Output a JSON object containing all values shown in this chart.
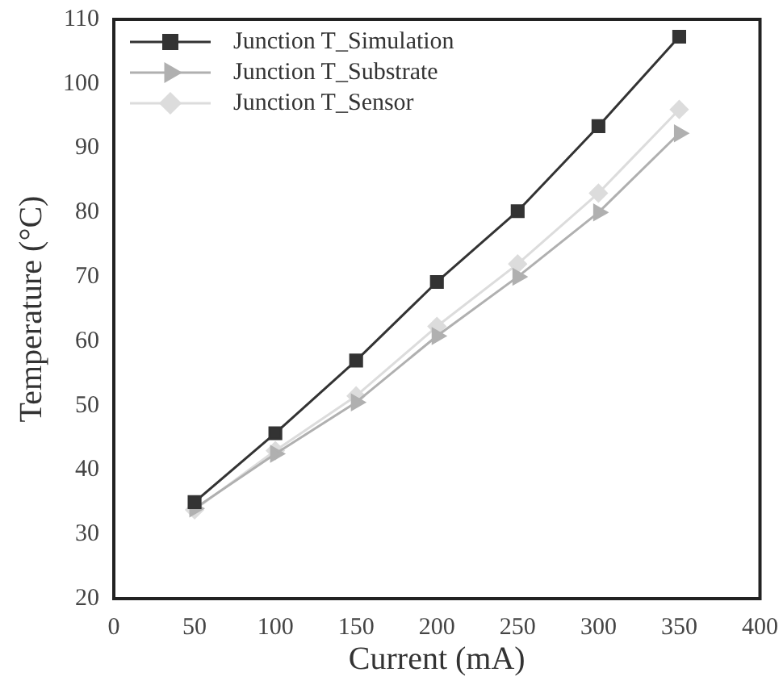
{
  "chart_data": {
    "type": "line",
    "xlabel": "Current (mA)",
    "ylabel": "Temperature (°C)",
    "x": [
      50,
      100,
      150,
      200,
      250,
      300,
      350
    ],
    "xlim": [
      0,
      400
    ],
    "xticks": [
      0,
      50,
      100,
      150,
      200,
      250,
      300,
      350,
      400
    ],
    "ylim": [
      20,
      110
    ],
    "yticks": [
      20,
      30,
      40,
      50,
      60,
      70,
      80,
      90,
      100,
      110
    ],
    "grid": false,
    "legend": "top left",
    "line_style": "solid",
    "series": [
      {
        "name": "Junction T_Simulation",
        "color": "#333333",
        "marker": "square",
        "values": [
          35,
          45.7,
          57,
          69.2,
          80.2,
          93.4,
          107.3
        ]
      },
      {
        "name": "Junction T_Substrate",
        "color": "#b0b0b0",
        "marker": "triangle",
        "values": [
          34,
          42.5,
          50.5,
          60.8,
          70,
          80,
          92.3
        ]
      },
      {
        "name": "Junction T_Sensor",
        "color": "#dcdcdc",
        "marker": "diamond",
        "values": [
          33.8,
          43,
          51.5,
          62.3,
          72,
          83,
          96
        ]
      }
    ]
  }
}
